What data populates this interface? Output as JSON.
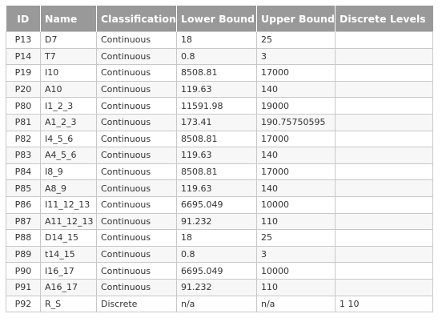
{
  "table": {
    "headers": [
      "ID",
      "Name",
      "Classification",
      "Lower Bound",
      "Upper Bound",
      "Discrete Levels"
    ],
    "rows": [
      [
        "P13",
        "D7",
        "Continuous",
        "18",
        "25",
        ""
      ],
      [
        "P14",
        "T7",
        "Continuous",
        "0.8",
        "3",
        ""
      ],
      [
        "P19",
        "I10",
        "Continuous",
        "8508.81",
        "17000",
        ""
      ],
      [
        "P20",
        "A10",
        "Continuous",
        "119.63",
        "140",
        ""
      ],
      [
        "P80",
        "I1_2_3",
        "Continuous",
        "11591.98",
        "19000",
        ""
      ],
      [
        "P81",
        "A1_2_3",
        "Continuous",
        "173.41",
        "190.75750595",
        ""
      ],
      [
        "P82",
        "I4_5_6",
        "Continuous",
        "8508.81",
        "17000",
        ""
      ],
      [
        "P83",
        "A4_5_6",
        "Continuous",
        "119.63",
        "140",
        ""
      ],
      [
        "P84",
        "I8_9",
        "Continuous",
        "8508.81",
        "17000",
        ""
      ],
      [
        "P85",
        "A8_9",
        "Continuous",
        "119.63",
        "140",
        ""
      ],
      [
        "P86",
        "I11_12_13",
        "Continuous",
        "6695.049",
        "10000",
        ""
      ],
      [
        "P87",
        "A11_12_13",
        "Continuous",
        "91.232",
        "110",
        ""
      ],
      [
        "P88",
        "D14_15",
        "Continuous",
        "18",
        "25",
        ""
      ],
      [
        "P89",
        "t14_15",
        "Continuous",
        "0.8",
        "3",
        ""
      ],
      [
        "P90",
        "I16_17",
        "Continuous",
        "6695.049",
        "10000",
        ""
      ],
      [
        "P91",
        "A16_17",
        "Continuous",
        "91.232",
        "110",
        ""
      ],
      [
        "P92",
        "R_S",
        "Discrete",
        "n/a",
        "n/a",
        "1 10"
      ]
    ]
  }
}
